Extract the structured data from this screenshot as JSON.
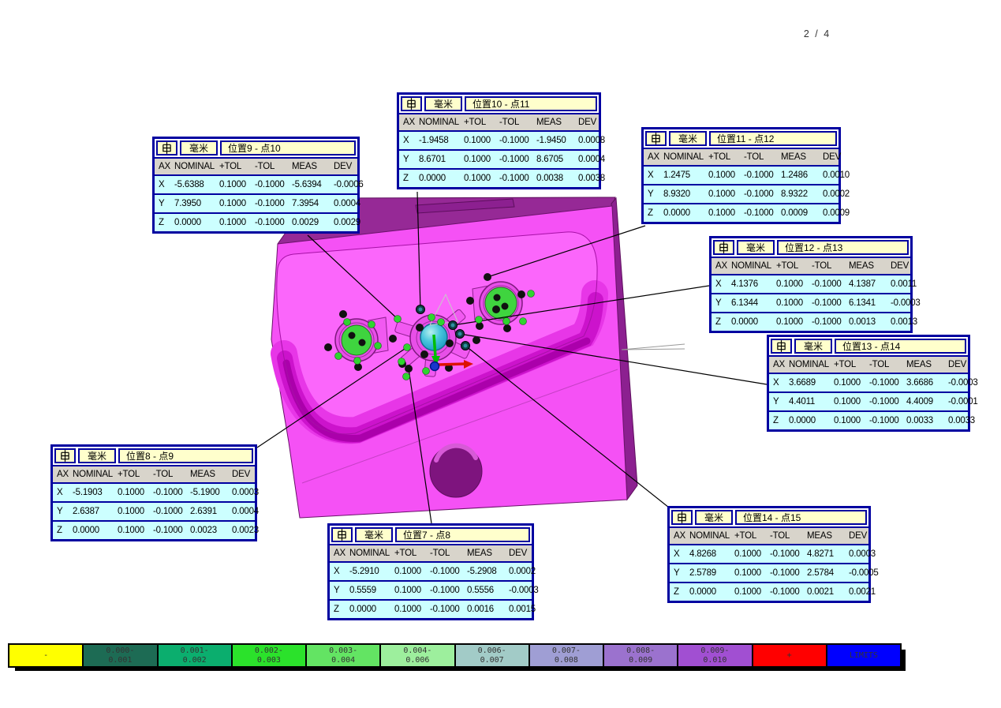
{
  "page": {
    "indicator": "2 / 4"
  },
  "theme": {
    "part-magenta": "#F551F5",
    "part-dark-top": "#962996",
    "part-dark-side": "#8C2090",
    "plateau-magenta": "#FB66FB",
    "shadow-magenta": "#BC00BC",
    "hole-purple": "#7E147E",
    "feature-green": "#3FD43F",
    "ring-magenta": "#E84FE8",
    "axis-red": "#DD1100",
    "axis-green": "#00BE00",
    "axis-blue": "#1A35CC",
    "table-border": "#0000A0",
    "table-title-bg": "#FFFFCC",
    "table-header-bg": "#D8D4CB",
    "table-data-bg": "#CCFFFF",
    "leader-black": "#000000",
    "scale-text": "#333333"
  },
  "callouts": [
    {
      "symbol": "position",
      "unit": "毫米",
      "title": "位置7 - 点8",
      "columns": [
        "AX",
        "NOMINAL",
        "+TOL",
        "-TOL",
        "MEAS",
        "DEV"
      ],
      "rows": [
        [
          "X",
          "-5.2910",
          "0.1000",
          "-0.1000",
          "-5.2908",
          "0.0002"
        ],
        [
          "Y",
          "0.5559",
          "0.1000",
          "-0.1000",
          "0.5556",
          "-0.0003"
        ],
        [
          "Z",
          "0.0000",
          "0.1000",
          "-0.1000",
          "0.0016",
          "0.0015"
        ]
      ]
    },
    {
      "symbol": "position",
      "unit": "毫米",
      "title": "位置8 - 点9",
      "columns": [
        "AX",
        "NOMINAL",
        "+TOL",
        "-TOL",
        "MEAS",
        "DEV"
      ],
      "rows": [
        [
          "X",
          "-5.1903",
          "0.1000",
          "-0.1000",
          "-5.1900",
          "0.0003"
        ],
        [
          "Y",
          "2.6387",
          "0.1000",
          "-0.1000",
          "2.6391",
          "0.0004"
        ],
        [
          "Z",
          "0.0000",
          "0.1000",
          "-0.1000",
          "0.0023",
          "0.0023"
        ]
      ]
    },
    {
      "symbol": "position",
      "unit": "毫米",
      "title": "位置9 - 点10",
      "columns": [
        "AX",
        "NOMINAL",
        "+TOL",
        "-TOL",
        "MEAS",
        "DEV"
      ],
      "rows": [
        [
          "X",
          "-5.6388",
          "0.1000",
          "-0.1000",
          "-5.6394",
          "-0.0006"
        ],
        [
          "Y",
          "7.3950",
          "0.1000",
          "-0.1000",
          "7.3954",
          "0.0004"
        ],
        [
          "Z",
          "0.0000",
          "0.1000",
          "-0.1000",
          "0.0029",
          "0.0029"
        ]
      ]
    },
    {
      "symbol": "position",
      "unit": "毫米",
      "title": "位置10 - 点11",
      "columns": [
        "AX",
        "NOMINAL",
        "+TOL",
        "-TOL",
        "MEAS",
        "DEV"
      ],
      "rows": [
        [
          "X",
          "-1.9458",
          "0.1000",
          "-0.1000",
          "-1.9450",
          "0.0008"
        ],
        [
          "Y",
          "8.6701",
          "0.1000",
          "-0.1000",
          "8.6705",
          "0.0004"
        ],
        [
          "Z",
          "0.0000",
          "0.1000",
          "-0.1000",
          "0.0038",
          "0.0038"
        ]
      ]
    },
    {
      "symbol": "position",
      "unit": "毫米",
      "title": "位置11 - 点12",
      "columns": [
        "AX",
        "NOMINAL",
        "+TOL",
        "-TOL",
        "MEAS",
        "DEV"
      ],
      "rows": [
        [
          "X",
          "1.2475",
          "0.1000",
          "-0.1000",
          "1.2486",
          "0.0010"
        ],
        [
          "Y",
          "8.9320",
          "0.1000",
          "-0.1000",
          "8.9322",
          "0.0002"
        ],
        [
          "Z",
          "0.0000",
          "0.1000",
          "-0.1000",
          "0.0009",
          "0.0009"
        ]
      ]
    },
    {
      "symbol": "position",
      "unit": "毫米",
      "title": "位置12 - 点13",
      "columns": [
        "AX",
        "NOMINAL",
        "+TOL",
        "-TOL",
        "MEAS",
        "DEV"
      ],
      "rows": [
        [
          "X",
          "4.1376",
          "0.1000",
          "-0.1000",
          "4.1387",
          "0.0011"
        ],
        [
          "Y",
          "6.1344",
          "0.1000",
          "-0.1000",
          "6.1341",
          "-0.0003"
        ],
        [
          "Z",
          "0.0000",
          "0.1000",
          "-0.1000",
          "0.0013",
          "0.0013"
        ]
      ]
    },
    {
      "symbol": "position",
      "unit": "毫米",
      "title": "位置13 - 点14",
      "columns": [
        "AX",
        "NOMINAL",
        "+TOL",
        "-TOL",
        "MEAS",
        "DEV"
      ],
      "rows": [
        [
          "X",
          "3.6689",
          "0.1000",
          "-0.1000",
          "3.6686",
          "-0.0003"
        ],
        [
          "Y",
          "4.4011",
          "0.1000",
          "-0.1000",
          "4.4009",
          "-0.0001"
        ],
        [
          "Z",
          "0.0000",
          "0.1000",
          "-0.1000",
          "0.0033",
          "0.0033"
        ]
      ]
    },
    {
      "symbol": "position",
      "unit": "毫米",
      "title": "位置14 - 点15",
      "columns": [
        "AX",
        "NOMINAL",
        "+TOL",
        "-TOL",
        "MEAS",
        "DEV"
      ],
      "rows": [
        [
          "X",
          "4.8268",
          "0.1000",
          "-0.1000",
          "4.8271",
          "0.0003"
        ],
        [
          "Y",
          "2.5789",
          "0.1000",
          "-0.1000",
          "2.5784",
          "-0.0005"
        ],
        [
          "Z",
          "0.0000",
          "0.1000",
          "-0.1000",
          "0.0021",
          "0.0021"
        ]
      ]
    }
  ],
  "color_scale": {
    "segments": [
      {
        "line1": "-",
        "line2": "",
        "color": "#FFFF00"
      },
      {
        "line1": "0.000-",
        "line2": "0.001",
        "color": "#1D6B54"
      },
      {
        "line1": "0.001-",
        "line2": "0.002",
        "color": "#0BAE6E"
      },
      {
        "line1": "0.002-",
        "line2": "0.003",
        "color": "#2BE22B"
      },
      {
        "line1": "0.003-",
        "line2": "0.004",
        "color": "#63E463"
      },
      {
        "line1": "0.004-",
        "line2": "0.006",
        "color": "#9DEF9D"
      },
      {
        "line1": "0.006-",
        "line2": "0.007",
        "color": "#A2CBC7"
      },
      {
        "line1": "0.007-",
        "line2": "0.008",
        "color": "#9F9ED4"
      },
      {
        "line1": "0.008-",
        "line2": "0.009",
        "color": "#9B72CE"
      },
      {
        "line1": "0.009-",
        "line2": "0.010",
        "color": "#A14FD2"
      },
      {
        "line1": "+",
        "line2": "",
        "color": "#FF0000"
      },
      {
        "line1": "LIMITS",
        "line2": "",
        "color": "#0000FF"
      }
    ]
  }
}
